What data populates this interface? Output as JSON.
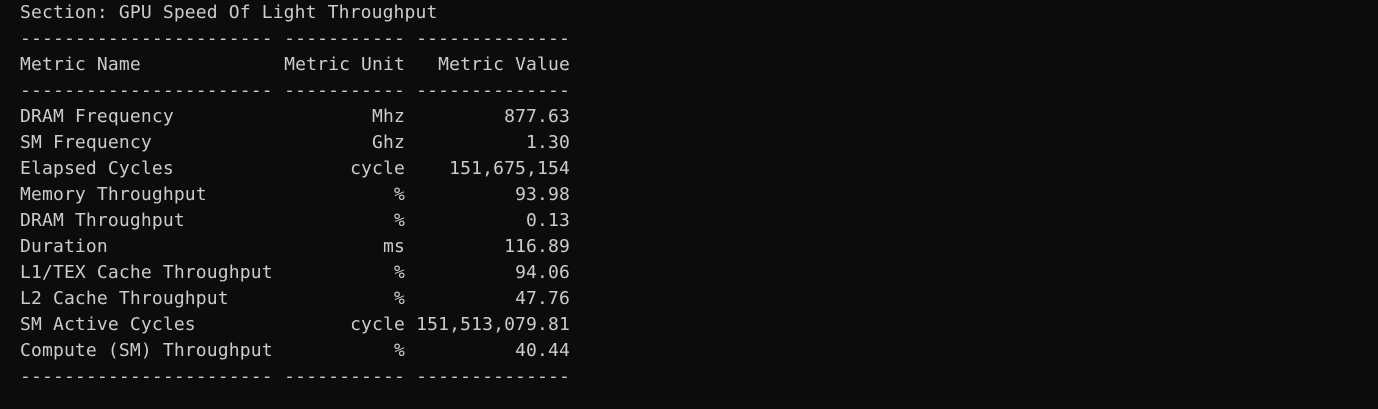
{
  "section_title": "Section: GPU Speed Of Light Throughput",
  "table": {
    "separator": [
      "-----------------------",
      "-----------",
      "--------------"
    ],
    "header": [
      "Metric Name",
      "Metric Unit",
      "Metric Value"
    ],
    "rows": [
      [
        "DRAM Frequency",
        "Mhz",
        "877.63"
      ],
      [
        "SM Frequency",
        "Ghz",
        "1.30"
      ],
      [
        "Elapsed Cycles",
        "cycle",
        "151,675,154"
      ],
      [
        "Memory Throughput",
        "%",
        "93.98"
      ],
      [
        "DRAM Throughput",
        "%",
        "0.13"
      ],
      [
        "Duration",
        "ms",
        "116.89"
      ],
      [
        "L1/TEX Cache Throughput",
        "%",
        "94.06"
      ],
      [
        "L2 Cache Throughput",
        "%",
        "47.76"
      ],
      [
        "SM Active Cycles",
        "cycle",
        "151,513,079.81"
      ],
      [
        "Compute (SM) Throughput",
        "%",
        "40.44"
      ]
    ]
  }
}
